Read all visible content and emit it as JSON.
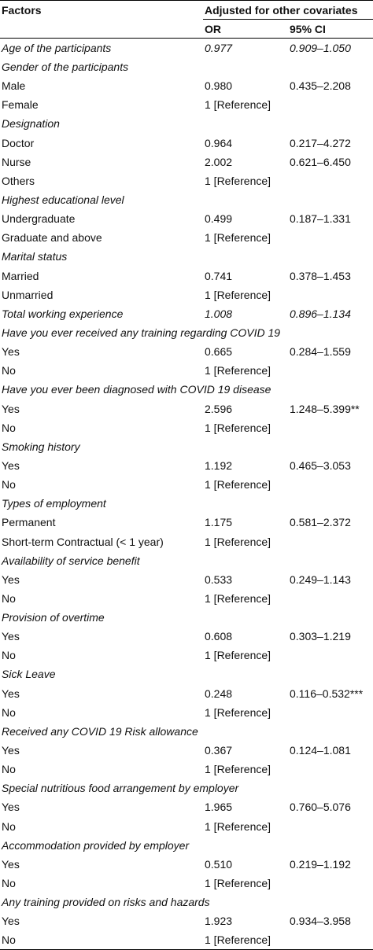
{
  "header": {
    "factors": "Factors",
    "adjusted": "Adjusted for other covariates",
    "or": "OR",
    "ci": "95% CI"
  },
  "rows": [
    {
      "type": "cat",
      "label": "Age of the participants",
      "or": "0.977",
      "ci": "0.909–1.050"
    },
    {
      "type": "cat",
      "label": "Gender of the participants",
      "or": "",
      "ci": ""
    },
    {
      "type": "row",
      "label": "Male",
      "or": "0.980",
      "ci": "0.435–2.208"
    },
    {
      "type": "row",
      "label": "Female",
      "or": "1 [Reference]",
      "ci": ""
    },
    {
      "type": "cat",
      "label": "Designation",
      "or": "",
      "ci": ""
    },
    {
      "type": "row",
      "label": "Doctor",
      "or": "0.964",
      "ci": "0.217–4.272"
    },
    {
      "type": "row",
      "label": "Nurse",
      "or": "2.002",
      "ci": "0.621–6.450"
    },
    {
      "type": "row",
      "label": "Others",
      "or": "1 [Reference]",
      "ci": ""
    },
    {
      "type": "cat",
      "label": "Highest educational level",
      "or": "",
      "ci": ""
    },
    {
      "type": "row",
      "label": "Undergraduate",
      "or": "0.499",
      "ci": "0.187–1.331"
    },
    {
      "type": "row",
      "label": "Graduate and above",
      "or": "1 [Reference]",
      "ci": ""
    },
    {
      "type": "cat",
      "label": "Marital status",
      "or": "",
      "ci": ""
    },
    {
      "type": "row",
      "label": "Married",
      "or": "0.741",
      "ci": "0.378–1.453"
    },
    {
      "type": "row",
      "label": "Unmarried",
      "or": "1 [Reference]",
      "ci": ""
    },
    {
      "type": "cat",
      "label": "Total working experience",
      "or": "1.008",
      "ci": "0.896–1.134"
    },
    {
      "type": "cat",
      "label": "Have you ever received any training regarding COVID 19",
      "or": "",
      "ci": ""
    },
    {
      "type": "row",
      "label": "Yes",
      "or": "0.665",
      "ci": "0.284–1.559"
    },
    {
      "type": "row",
      "label": "No",
      "or": "1 [Reference]",
      "ci": ""
    },
    {
      "type": "cat",
      "label": "Have you ever been diagnosed with COVID 19 disease",
      "or": "",
      "ci": ""
    },
    {
      "type": "row",
      "label": "Yes",
      "or": "2.596",
      "ci": "1.248–5.399**"
    },
    {
      "type": "row",
      "label": "No",
      "or": "1 [Reference]",
      "ci": ""
    },
    {
      "type": "cat",
      "label": "Smoking history",
      "or": "",
      "ci": ""
    },
    {
      "type": "row",
      "label": "Yes",
      "or": "1.192",
      "ci": "0.465–3.053"
    },
    {
      "type": "row",
      "label": "No",
      "or": "1 [Reference]",
      "ci": ""
    },
    {
      "type": "cat",
      "label": "Types of employment",
      "or": "",
      "ci": ""
    },
    {
      "type": "row",
      "label": "Permanent",
      "or": "1.175",
      "ci": "0.581–2.372"
    },
    {
      "type": "row",
      "label": "Short-term Contractual (< 1 year)",
      "or": "1 [Reference]",
      "ci": ""
    },
    {
      "type": "cat",
      "label": "Availability of service benefit",
      "or": "",
      "ci": ""
    },
    {
      "type": "row",
      "label": "Yes",
      "or": "0.533",
      "ci": "0.249–1.143"
    },
    {
      "type": "row",
      "label": "No",
      "or": "1 [Reference]",
      "ci": ""
    },
    {
      "type": "cat",
      "label": "Provision of overtime",
      "or": "",
      "ci": ""
    },
    {
      "type": "row",
      "label": "Yes",
      "or": "0.608",
      "ci": "0.303–1.219"
    },
    {
      "type": "row",
      "label": "No",
      "or": "1 [Reference]",
      "ci": ""
    },
    {
      "type": "cat",
      "label": "Sick Leave",
      "or": "",
      "ci": ""
    },
    {
      "type": "row",
      "label": "Yes",
      "or": "0.248",
      "ci": "0.116–0.532***"
    },
    {
      "type": "row",
      "label": "No",
      "or": "1 [Reference]",
      "ci": ""
    },
    {
      "type": "cat",
      "label": "Received any COVID 19 Risk allowance",
      "or": "",
      "ci": ""
    },
    {
      "type": "row",
      "label": "Yes",
      "or": "0.367",
      "ci": "0.124–1.081"
    },
    {
      "type": "row",
      "label": "No",
      "or": "1 [Reference]",
      "ci": ""
    },
    {
      "type": "cat",
      "label": "Special nutritious food arrangement by employer",
      "or": "",
      "ci": ""
    },
    {
      "type": "row",
      "label": "Yes",
      "or": "1.965",
      "ci": "0.760–5.076"
    },
    {
      "type": "row",
      "label": "No",
      "or": "1 [Reference]",
      "ci": ""
    },
    {
      "type": "cat",
      "label": "Accommodation provided by employer",
      "or": "",
      "ci": ""
    },
    {
      "type": "row",
      "label": "Yes",
      "or": "0.510",
      "ci": "0.219–1.192"
    },
    {
      "type": "row",
      "label": "No",
      "or": "1 [Reference]",
      "ci": ""
    },
    {
      "type": "cat",
      "label": "Any training provided on risks and hazards",
      "or": "",
      "ci": ""
    },
    {
      "type": "row",
      "label": "Yes",
      "or": "1.923",
      "ci": "0.934–3.958"
    },
    {
      "type": "row",
      "label": "No",
      "or": "1 [Reference]",
      "ci": ""
    }
  ]
}
